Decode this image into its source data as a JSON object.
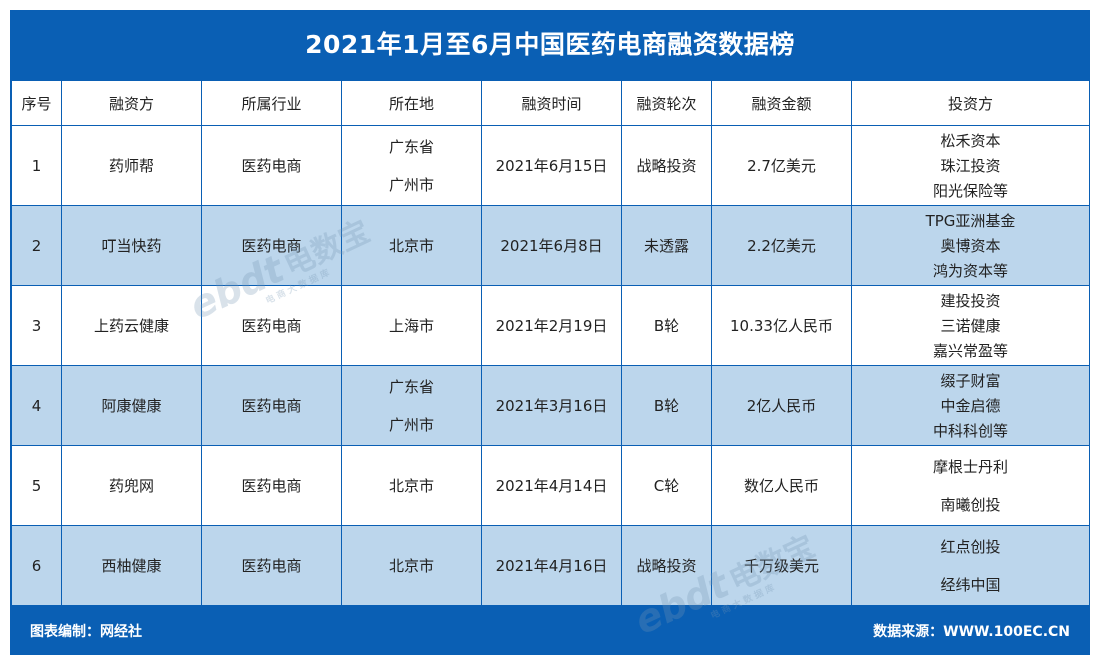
{
  "title": "2021年1月至6月中国医药电商融资数据榜",
  "headers": [
    "序号",
    "融资方",
    "所属行业",
    "所在地",
    "融资时间",
    "融资轮次",
    "融资金额",
    "投资方"
  ],
  "rows": [
    {
      "no": "1",
      "company": "药师帮",
      "industry": "医药电商",
      "location": [
        "广东省",
        "广州市"
      ],
      "date": "2021年6月15日",
      "round": "战略投资",
      "amount": "2.7亿美元",
      "investors": [
        "松禾资本",
        "珠江投资",
        "阳光保险等"
      ]
    },
    {
      "no": "2",
      "company": "叮当快药",
      "industry": "医药电商",
      "location": [
        "北京市"
      ],
      "date": "2021年6月8日",
      "round": "未透露",
      "amount": "2.2亿美元",
      "investors": [
        "TPG亚洲基金",
        "奥博资本",
        "鸿为资本等"
      ]
    },
    {
      "no": "3",
      "company": "上药云健康",
      "industry": "医药电商",
      "location": [
        "上海市"
      ],
      "date": "2021年2月19日",
      "round": "B轮",
      "amount": "10.33亿人民币",
      "investors": [
        "建投投资",
        "三诺健康",
        "嘉兴常盈等"
      ]
    },
    {
      "no": "4",
      "company": "阿康健康",
      "industry": "医药电商",
      "location": [
        "广东省",
        "广州市"
      ],
      "date": "2021年3月16日",
      "round": "B轮",
      "amount": "2亿人民币",
      "investors": [
        "缀子财富",
        "中金启德",
        "中科科创等"
      ]
    },
    {
      "no": "5",
      "company": "药兜网",
      "industry": "医药电商",
      "location": [
        "北京市"
      ],
      "date": "2021年4月14日",
      "round": "C轮",
      "amount": "数亿人民币",
      "investors": [
        "摩根士丹利",
        "南曦创投"
      ]
    },
    {
      "no": "6",
      "company": "西柚健康",
      "industry": "医药电商",
      "location": [
        "北京市"
      ],
      "date": "2021年4月16日",
      "round": "战略投资",
      "amount": "千万级美元",
      "investors": [
        "红点创投",
        "经纬中国"
      ]
    }
  ],
  "footer": {
    "left": "图表编制：网经社",
    "right": "数据来源：WWW.100EC.CN"
  },
  "watermark": {
    "text": "电数宝",
    "sub": "电商大数据库",
    "logo": "ebdt"
  },
  "colors": {
    "primary": "#0a5fb4",
    "stripe": "#bcd6ec",
    "border": "#0a5fb4"
  }
}
